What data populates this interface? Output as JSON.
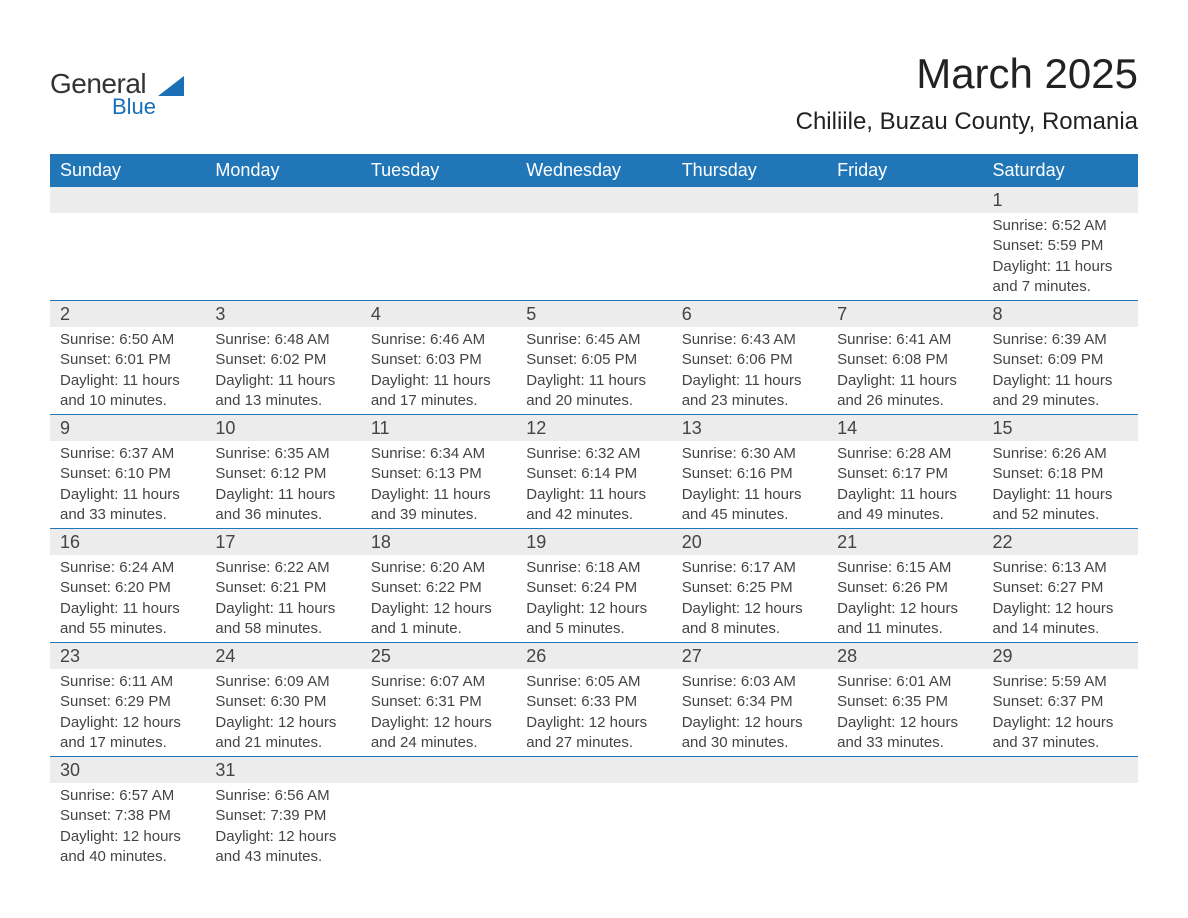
{
  "brand": {
    "line1": "General",
    "line2": "Blue",
    "brand_color": "#1a6fb5"
  },
  "title": {
    "month": "March 2025",
    "location": "Chiliile, Buzau County, Romania"
  },
  "header_row_bg": "#2176b8",
  "daynum_bg": "#ececec",
  "text_color": "#444444",
  "days_of_week": [
    "Sunday",
    "Monday",
    "Tuesday",
    "Wednesday",
    "Thursday",
    "Friday",
    "Saturday"
  ],
  "weeks": [
    [
      null,
      null,
      null,
      null,
      null,
      null,
      {
        "n": "1",
        "sunrise": "Sunrise: 6:52 AM",
        "sunset": "Sunset: 5:59 PM",
        "daylight": "Daylight: 11 hours and 7 minutes."
      }
    ],
    [
      {
        "n": "2",
        "sunrise": "Sunrise: 6:50 AM",
        "sunset": "Sunset: 6:01 PM",
        "daylight": "Daylight: 11 hours and 10 minutes."
      },
      {
        "n": "3",
        "sunrise": "Sunrise: 6:48 AM",
        "sunset": "Sunset: 6:02 PM",
        "daylight": "Daylight: 11 hours and 13 minutes."
      },
      {
        "n": "4",
        "sunrise": "Sunrise: 6:46 AM",
        "sunset": "Sunset: 6:03 PM",
        "daylight": "Daylight: 11 hours and 17 minutes."
      },
      {
        "n": "5",
        "sunrise": "Sunrise: 6:45 AM",
        "sunset": "Sunset: 6:05 PM",
        "daylight": "Daylight: 11 hours and 20 minutes."
      },
      {
        "n": "6",
        "sunrise": "Sunrise: 6:43 AM",
        "sunset": "Sunset: 6:06 PM",
        "daylight": "Daylight: 11 hours and 23 minutes."
      },
      {
        "n": "7",
        "sunrise": "Sunrise: 6:41 AM",
        "sunset": "Sunset: 6:08 PM",
        "daylight": "Daylight: 11 hours and 26 minutes."
      },
      {
        "n": "8",
        "sunrise": "Sunrise: 6:39 AM",
        "sunset": "Sunset: 6:09 PM",
        "daylight": "Daylight: 11 hours and 29 minutes."
      }
    ],
    [
      {
        "n": "9",
        "sunrise": "Sunrise: 6:37 AM",
        "sunset": "Sunset: 6:10 PM",
        "daylight": "Daylight: 11 hours and 33 minutes."
      },
      {
        "n": "10",
        "sunrise": "Sunrise: 6:35 AM",
        "sunset": "Sunset: 6:12 PM",
        "daylight": "Daylight: 11 hours and 36 minutes."
      },
      {
        "n": "11",
        "sunrise": "Sunrise: 6:34 AM",
        "sunset": "Sunset: 6:13 PM",
        "daylight": "Daylight: 11 hours and 39 minutes."
      },
      {
        "n": "12",
        "sunrise": "Sunrise: 6:32 AM",
        "sunset": "Sunset: 6:14 PM",
        "daylight": "Daylight: 11 hours and 42 minutes."
      },
      {
        "n": "13",
        "sunrise": "Sunrise: 6:30 AM",
        "sunset": "Sunset: 6:16 PM",
        "daylight": "Daylight: 11 hours and 45 minutes."
      },
      {
        "n": "14",
        "sunrise": "Sunrise: 6:28 AM",
        "sunset": "Sunset: 6:17 PM",
        "daylight": "Daylight: 11 hours and 49 minutes."
      },
      {
        "n": "15",
        "sunrise": "Sunrise: 6:26 AM",
        "sunset": "Sunset: 6:18 PM",
        "daylight": "Daylight: 11 hours and 52 minutes."
      }
    ],
    [
      {
        "n": "16",
        "sunrise": "Sunrise: 6:24 AM",
        "sunset": "Sunset: 6:20 PM",
        "daylight": "Daylight: 11 hours and 55 minutes."
      },
      {
        "n": "17",
        "sunrise": "Sunrise: 6:22 AM",
        "sunset": "Sunset: 6:21 PM",
        "daylight": "Daylight: 11 hours and 58 minutes."
      },
      {
        "n": "18",
        "sunrise": "Sunrise: 6:20 AM",
        "sunset": "Sunset: 6:22 PM",
        "daylight": "Daylight: 12 hours and 1 minute."
      },
      {
        "n": "19",
        "sunrise": "Sunrise: 6:18 AM",
        "sunset": "Sunset: 6:24 PM",
        "daylight": "Daylight: 12 hours and 5 minutes."
      },
      {
        "n": "20",
        "sunrise": "Sunrise: 6:17 AM",
        "sunset": "Sunset: 6:25 PM",
        "daylight": "Daylight: 12 hours and 8 minutes."
      },
      {
        "n": "21",
        "sunrise": "Sunrise: 6:15 AM",
        "sunset": "Sunset: 6:26 PM",
        "daylight": "Daylight: 12 hours and 11 minutes."
      },
      {
        "n": "22",
        "sunrise": "Sunrise: 6:13 AM",
        "sunset": "Sunset: 6:27 PM",
        "daylight": "Daylight: 12 hours and 14 minutes."
      }
    ],
    [
      {
        "n": "23",
        "sunrise": "Sunrise: 6:11 AM",
        "sunset": "Sunset: 6:29 PM",
        "daylight": "Daylight: 12 hours and 17 minutes."
      },
      {
        "n": "24",
        "sunrise": "Sunrise: 6:09 AM",
        "sunset": "Sunset: 6:30 PM",
        "daylight": "Daylight: 12 hours and 21 minutes."
      },
      {
        "n": "25",
        "sunrise": "Sunrise: 6:07 AM",
        "sunset": "Sunset: 6:31 PM",
        "daylight": "Daylight: 12 hours and 24 minutes."
      },
      {
        "n": "26",
        "sunrise": "Sunrise: 6:05 AM",
        "sunset": "Sunset: 6:33 PM",
        "daylight": "Daylight: 12 hours and 27 minutes."
      },
      {
        "n": "27",
        "sunrise": "Sunrise: 6:03 AM",
        "sunset": "Sunset: 6:34 PM",
        "daylight": "Daylight: 12 hours and 30 minutes."
      },
      {
        "n": "28",
        "sunrise": "Sunrise: 6:01 AM",
        "sunset": "Sunset: 6:35 PM",
        "daylight": "Daylight: 12 hours and 33 minutes."
      },
      {
        "n": "29",
        "sunrise": "Sunrise: 5:59 AM",
        "sunset": "Sunset: 6:37 PM",
        "daylight": "Daylight: 12 hours and 37 minutes."
      }
    ],
    [
      {
        "n": "30",
        "sunrise": "Sunrise: 6:57 AM",
        "sunset": "Sunset: 7:38 PM",
        "daylight": "Daylight: 12 hours and 40 minutes."
      },
      {
        "n": "31",
        "sunrise": "Sunrise: 6:56 AM",
        "sunset": "Sunset: 7:39 PM",
        "daylight": "Daylight: 12 hours and 43 minutes."
      },
      null,
      null,
      null,
      null,
      null
    ]
  ]
}
